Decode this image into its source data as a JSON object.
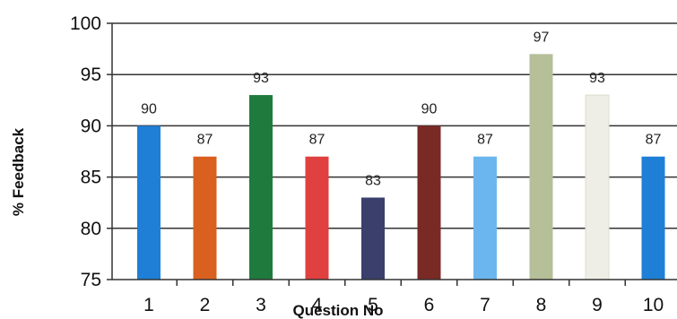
{
  "chart_data": {
    "type": "bar",
    "categories": [
      "1",
      "2",
      "3",
      "4",
      "5",
      "6",
      "7",
      "8",
      "9",
      "10"
    ],
    "values": [
      90,
      87,
      93,
      87,
      83,
      90,
      87,
      97,
      93,
      87
    ],
    "data_labels": [
      "90",
      "87",
      "93",
      "87",
      "83",
      "90",
      "87",
      "97",
      "93",
      "87"
    ],
    "colors": [
      "#1f7fd6",
      "#d9601f",
      "#1f7a3e",
      "#e04040",
      "#3a3f6b",
      "#7a2a25",
      "#6bb6ee",
      "#b5bf98",
      "#efeee6",
      "#1f7fd6"
    ],
    "xlabel": "Question No",
    "ylabel": "% Feedback",
    "ylim": [
      75,
      100
    ],
    "yticks": [
      "75",
      "80",
      "85",
      "90",
      "95",
      "100"
    ],
    "grid": true
  }
}
